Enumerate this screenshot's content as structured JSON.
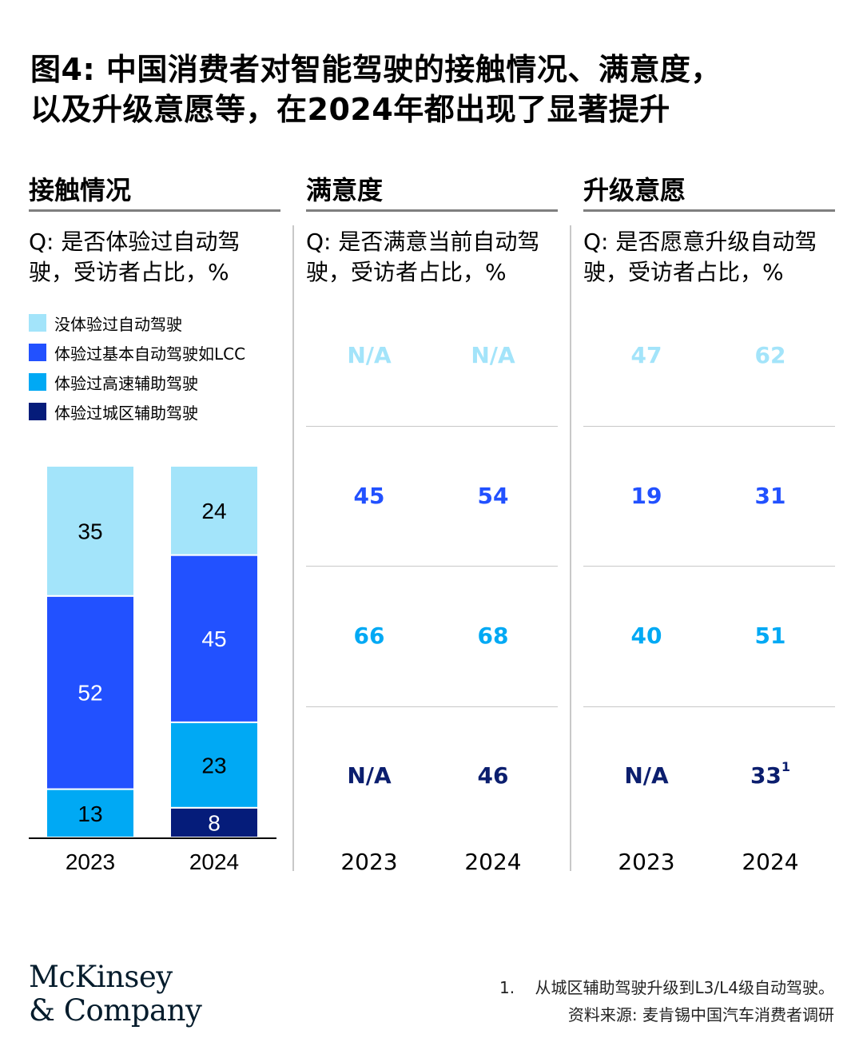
{
  "title": {
    "line1": "图4: 中国消费者对智能驾驶的接触情况、满意度，",
    "line2": "以及升级意愿等，在2024年都出现了显著提升"
  },
  "colors": {
    "not_experienced": "#a3e4fa",
    "basic_lcc": "#2251ff",
    "highway_assist": "#00a9f4",
    "urban_assist": "#051c7a",
    "label_not_experienced": "#a3e4fa",
    "label_basic": "#2251ff",
    "label_highway": "#00a9f4",
    "label_urban": "#0b1e6e"
  },
  "exposure": {
    "heading": "接触情况",
    "question": "Q: 是否体验过自动驾驶，受访者占比，%",
    "legend": [
      "没体验过自动驾驶",
      "体验过基本自动驾驶如LCC",
      "体验过高速辅助驾驶",
      "体验过城区辅助驾驶"
    ]
  },
  "satisfaction": {
    "heading": "满意度",
    "question": "Q: 是否满意当前自动驾驶，受访者占比，%",
    "rows": [
      {
        "y2023": "N/A",
        "y2024": "N/A"
      },
      {
        "y2023": "45",
        "y2024": "54"
      },
      {
        "y2023": "66",
        "y2024": "68"
      },
      {
        "y2023": "N/A",
        "y2024": "46"
      }
    ],
    "years": [
      "2023",
      "2024"
    ]
  },
  "upgrade": {
    "heading": "升级意愿",
    "question": "Q: 是否愿意升级自动驾驶，受访者占比，%",
    "rows": [
      {
        "y2023": "47",
        "y2024": "62"
      },
      {
        "y2023": "19",
        "y2024": "31"
      },
      {
        "y2023": "40",
        "y2024": "51"
      },
      {
        "y2023": "N/A",
        "y2024": "33",
        "y2024_note": "1"
      }
    ],
    "years": [
      "2023",
      "2024"
    ]
  },
  "chart_data": {
    "type": "bar",
    "stacked": true,
    "title": "是否体验过自动驾驶，受访者占比，%",
    "categories": [
      "2023",
      "2024"
    ],
    "series": [
      {
        "name": "体验过城区辅助驾驶",
        "values": [
          0,
          8
        ]
      },
      {
        "name": "体验过高速辅助驾驶",
        "values": [
          13,
          23
        ]
      },
      {
        "name": "体验过基本自动驾驶如LCC",
        "values": [
          52,
          45
        ]
      },
      {
        "name": "没体验过自动驾驶",
        "values": [
          35,
          24
        ]
      }
    ],
    "ylim": [
      0,
      100
    ]
  },
  "brand": {
    "line1": "McKinsey",
    "line2": "& Company"
  },
  "footnote": {
    "number": "1.",
    "text": "从城区辅助驾驶升级到L3/L4级自动驾驶。",
    "source": "资料来源: 麦肯锡中国汽车消费者调研"
  }
}
